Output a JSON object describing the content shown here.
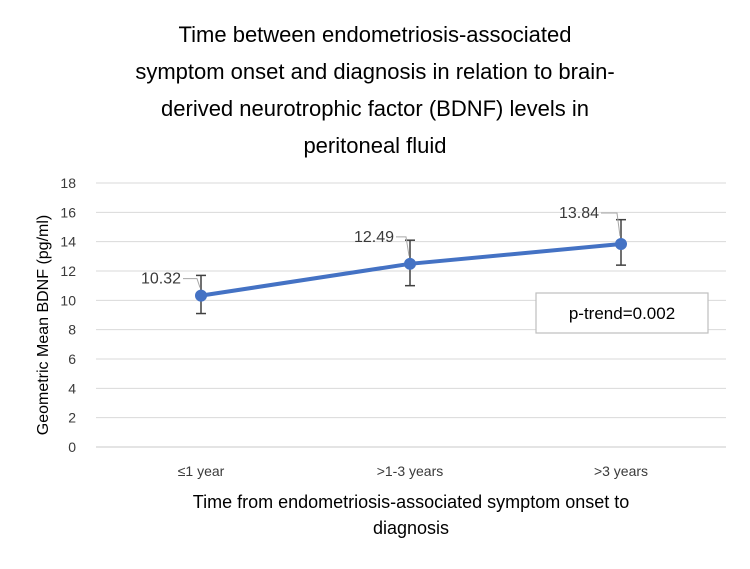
{
  "chart_data": {
    "type": "line",
    "title_lines": [
      "Time between endometriosis-associated",
      "symptom onset and diagnosis in relation to brain-",
      "derived neurotrophic factor (BDNF) levels in",
      "peritoneal fluid"
    ],
    "categories": [
      "≤1 year",
      ">1-3 years",
      ">3 years"
    ],
    "series": [
      {
        "values": [
          10.32,
          12.49,
          13.84
        ],
        "error_low": [
          9.1,
          11.0,
          12.4
        ],
        "error_high": [
          11.7,
          14.1,
          15.5
        ],
        "data_labels": [
          "10.32",
          "12.49",
          "13.84"
        ],
        "color": "#4472C4"
      }
    ],
    "ylabel": "Geometric Mean BDNF (pg/ml)",
    "xlabel_lines": [
      "Time from endometriosis-associated symptom onset to",
      "diagnosis"
    ],
    "ylim": [
      0,
      18
    ],
    "yticks": [
      0,
      2,
      4,
      6,
      8,
      10,
      12,
      14,
      16,
      18
    ],
    "grid": true,
    "annotation": "p-trend=0.002"
  }
}
